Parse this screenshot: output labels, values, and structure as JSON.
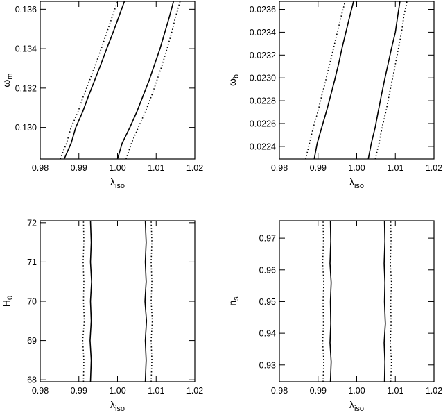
{
  "chart_data": [
    {
      "type": "line",
      "xlabel": {
        "base": "λ",
        "sub": "iso"
      },
      "ylabel": {
        "base": "ω",
        "sub": "m"
      },
      "xlim": [
        0.98,
        1.02
      ],
      "ylim": [
        0.1284,
        0.1364
      ],
      "xticks": [
        "0.98",
        "0.99",
        "1.00",
        "1.01",
        "1.02"
      ],
      "xtick_values": [
        0.98,
        0.99,
        1.0,
        1.01,
        1.02
      ],
      "yticks": [
        "0.130",
        "0.132",
        "0.134",
        "0.136"
      ],
      "ytick_values": [
        0.13,
        0.132,
        0.134,
        0.136
      ],
      "series": [
        {
          "style": "solid",
          "x": [
            0.9862,
            0.988,
            0.9892,
            0.991,
            0.9925,
            0.9941,
            0.9957,
            0.9972,
            0.9988,
            1.0003,
            1.0018
          ],
          "y": [
            0.1284,
            0.1292,
            0.13,
            0.1308,
            0.1316,
            0.1324,
            0.1332,
            0.134,
            0.1348,
            0.1356,
            0.1364
          ]
        },
        {
          "style": "solid",
          "x": [
            1.0,
            1.0012,
            1.0032,
            1.005,
            1.0066,
            1.0082,
            1.0096,
            1.011,
            1.0122,
            1.0134,
            1.0145
          ],
          "y": [
            0.1284,
            0.1292,
            0.13,
            0.1308,
            0.1316,
            0.1324,
            0.1332,
            0.134,
            0.1348,
            0.1356,
            0.1364
          ]
        },
        {
          "style": "dotted",
          "x": [
            0.9852,
            0.9868,
            0.988,
            0.9898,
            0.9912,
            0.9928,
            0.9943,
            0.9958,
            0.9972,
            0.9986,
            1.0
          ],
          "y": [
            0.1284,
            0.1292,
            0.13,
            0.1308,
            0.1316,
            0.1324,
            0.1332,
            0.134,
            0.1348,
            0.1356,
            0.1364
          ]
        },
        {
          "style": "dotted",
          "x": [
            1.0022,
            1.0036,
            1.0054,
            1.0072,
            1.0088,
            1.0102,
            1.0116,
            1.0128,
            1.014,
            1.015,
            1.0162
          ],
          "y": [
            0.1284,
            0.1292,
            0.13,
            0.1308,
            0.1316,
            0.1324,
            0.1332,
            0.134,
            0.1348,
            0.1356,
            0.1364
          ]
        }
      ]
    },
    {
      "type": "line",
      "xlabel": {
        "base": "λ",
        "sub": "iso"
      },
      "ylabel": {
        "base": "ω",
        "sub": "b"
      },
      "xlim": [
        0.98,
        1.02
      ],
      "ylim": [
        0.02229,
        0.02367
      ],
      "xticks": [
        "0.98",
        "0.99",
        "1.00",
        "1.01",
        "1.02"
      ],
      "xtick_values": [
        0.98,
        0.99,
        1.0,
        1.01,
        1.02
      ],
      "yticks": [
        "0.0224",
        "0.0226",
        "0.0228",
        "0.0230",
        "0.0232",
        "0.0234",
        "0.0236"
      ],
      "ytick_values": [
        0.0224,
        0.0226,
        0.0228,
        0.023,
        0.0232,
        0.0234,
        0.0236
      ],
      "series": [
        {
          "style": "solid",
          "x": [
            0.989,
            0.9898,
            0.991,
            0.9922,
            0.9933,
            0.9943,
            0.9953,
            0.9962,
            0.9972,
            0.9982,
            0.9992
          ],
          "y": [
            0.02229,
            0.02243,
            0.02257,
            0.02271,
            0.02285,
            0.02298,
            0.02312,
            0.02326,
            0.0234,
            0.02354,
            0.02367
          ]
        },
        {
          "style": "solid",
          "x": [
            1.003,
            1.0038,
            1.0048,
            1.0056,
            1.0064,
            1.0072,
            1.0081,
            1.009,
            1.01,
            1.0106,
            1.0112
          ],
          "y": [
            0.02229,
            0.02243,
            0.02257,
            0.02271,
            0.02285,
            0.02298,
            0.02312,
            0.02326,
            0.0234,
            0.02354,
            0.02367
          ]
        },
        {
          "style": "dotted",
          "x": [
            0.9868,
            0.9878,
            0.9888,
            0.99,
            0.991,
            0.992,
            0.993,
            0.994,
            0.995,
            0.996,
            0.997
          ],
          "y": [
            0.02229,
            0.02243,
            0.02257,
            0.02271,
            0.02285,
            0.02298,
            0.02312,
            0.02326,
            0.0234,
            0.02354,
            0.02367
          ]
        },
        {
          "style": "dotted",
          "x": [
            1.0048,
            1.0058,
            1.0066,
            1.0076,
            1.0084,
            1.0092,
            1.01,
            1.0108,
            1.0116,
            1.0122,
            1.013
          ],
          "y": [
            0.02229,
            0.02243,
            0.02257,
            0.02271,
            0.02285,
            0.02298,
            0.02312,
            0.02326,
            0.0234,
            0.02354,
            0.02367
          ]
        }
      ]
    },
    {
      "type": "line",
      "xlabel": {
        "base": "λ",
        "sub": "iso"
      },
      "ylabel": {
        "base": "H",
        "sub": "0"
      },
      "xlim": [
        0.98,
        1.02
      ],
      "ylim": [
        67.95,
        72.05
      ],
      "xticks": [
        "0.98",
        "0.99",
        "1.00",
        "1.01",
        "1.02"
      ],
      "xtick_values": [
        0.98,
        0.99,
        1.0,
        1.01,
        1.02
      ],
      "yticks": [
        "68",
        "69",
        "70",
        "71",
        "72"
      ],
      "ytick_values": [
        68,
        69,
        70,
        71,
        72
      ],
      "series": [
        {
          "style": "solid",
          "x": [
            0.993,
            0.9932,
            0.9929,
            0.9932,
            0.993,
            0.9933,
            0.993,
            0.9932,
            0.993
          ],
          "y": [
            67.95,
            68.5,
            69.0,
            69.5,
            70.0,
            70.5,
            71.0,
            71.5,
            72.05
          ]
        },
        {
          "style": "solid",
          "x": [
            1.0072,
            1.0074,
            1.0072,
            1.0075,
            1.0071,
            1.0074,
            1.0072,
            1.0074,
            1.0072
          ],
          "y": [
            67.95,
            68.5,
            69.0,
            69.5,
            70.0,
            70.5,
            71.0,
            71.5,
            72.05
          ]
        },
        {
          "style": "dotted",
          "x": [
            0.9912,
            0.9913,
            0.991,
            0.9914,
            0.9912,
            0.9913,
            0.9911,
            0.9913,
            0.9912
          ],
          "y": [
            67.95,
            68.5,
            69.0,
            69.5,
            70.0,
            70.5,
            71.0,
            71.5,
            72.05
          ]
        },
        {
          "style": "dotted",
          "x": [
            1.0087,
            1.0089,
            1.0087,
            1.009,
            1.0087,
            1.0089,
            1.0087,
            1.0089,
            1.0087
          ],
          "y": [
            67.95,
            68.5,
            69.0,
            69.5,
            70.0,
            70.5,
            71.0,
            71.5,
            72.05
          ]
        }
      ]
    },
    {
      "type": "line",
      "xlabel": {
        "base": "λ",
        "sub": "iso"
      },
      "ylabel": {
        "base": "n",
        "sub": "s"
      },
      "xlim": [
        0.98,
        1.02
      ],
      "ylim": [
        0.9247,
        0.9755
      ],
      "xticks": [
        "0.98",
        "0.99",
        "1.00",
        "1.01",
        "1.02"
      ],
      "xtick_values": [
        0.98,
        0.99,
        1.0,
        1.01,
        1.02
      ],
      "yticks": [
        "0.93",
        "0.94",
        "0.95",
        "0.96",
        "0.97"
      ],
      "ytick_values": [
        0.93,
        0.94,
        0.95,
        0.96,
        0.97
      ],
      "series": [
        {
          "style": "solid",
          "x": [
            0.9932,
            0.9934,
            0.9931,
            0.9933,
            0.9932,
            0.9934,
            0.9931,
            0.9933,
            0.9932
          ],
          "y": [
            0.9247,
            0.931,
            0.937,
            0.943,
            0.95,
            0.956,
            0.962,
            0.969,
            0.9755
          ]
        },
        {
          "style": "solid",
          "x": [
            1.0072,
            1.0073,
            1.0071,
            1.0074,
            1.0072,
            1.0073,
            1.0071,
            1.0073,
            1.0072
          ],
          "y": [
            0.9247,
            0.931,
            0.937,
            0.943,
            0.95,
            0.956,
            0.962,
            0.969,
            0.9755
          ]
        },
        {
          "style": "dotted",
          "x": [
            0.9913,
            0.9915,
            0.9912,
            0.9914,
            0.9913,
            0.9915,
            0.9912,
            0.9914,
            0.9913
          ],
          "y": [
            0.9247,
            0.931,
            0.937,
            0.943,
            0.95,
            0.956,
            0.962,
            0.969,
            0.9755
          ]
        },
        {
          "style": "dotted",
          "x": [
            1.0088,
            1.009,
            1.0087,
            1.0089,
            1.0088,
            1.009,
            1.0087,
            1.0089,
            1.0088
          ],
          "y": [
            0.9247,
            0.931,
            0.937,
            0.943,
            0.95,
            0.956,
            0.962,
            0.969,
            0.9755
          ]
        }
      ]
    }
  ]
}
